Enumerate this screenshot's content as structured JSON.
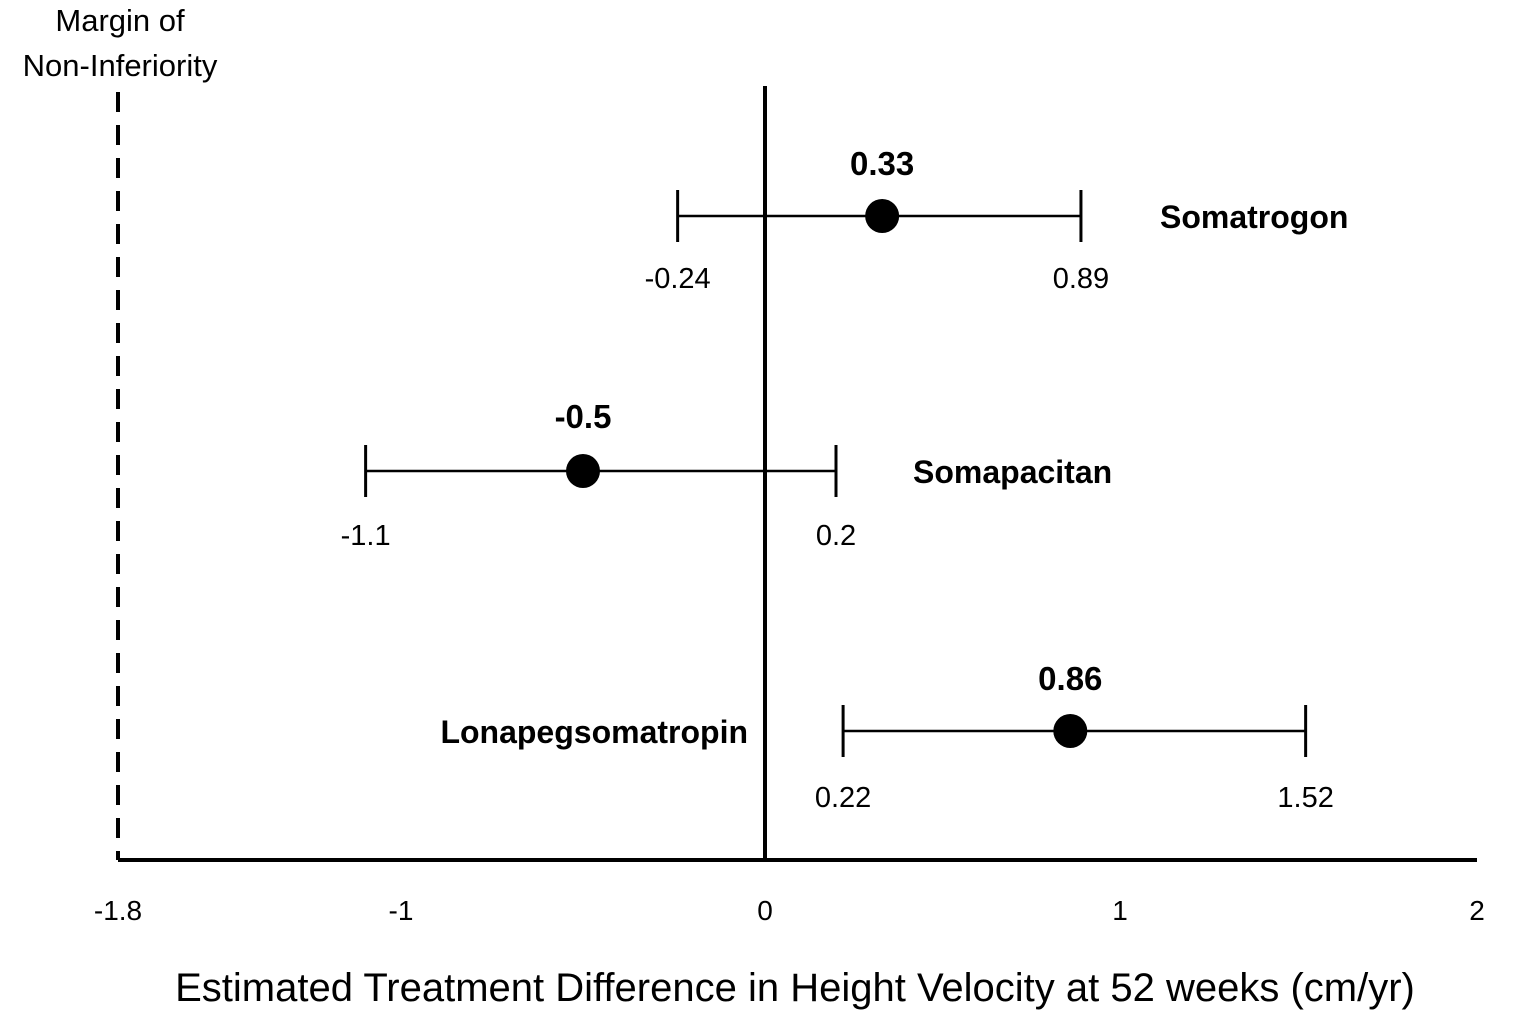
{
  "chart_data": {
    "type": "forest",
    "title": "",
    "xlabel": "Estimated Treatment Difference in Height Velocity at 52 weeks (cm/yr)",
    "ylabel": "",
    "xlim": [
      -1.8,
      2
    ],
    "x_ticks": [
      -1.8,
      -1,
      0,
      1,
      2
    ],
    "x_tick_labels": [
      "-1.8",
      "-1",
      "0",
      "1",
      "2"
    ],
    "reference_line": 0,
    "non_inferiority_margin": {
      "value": -1.8,
      "label_line1": "Margin of",
      "label_line2": "Non-Inferiority"
    },
    "grid": false,
    "series": [
      {
        "name": "Somatrogon",
        "estimate": 0.33,
        "estimate_label": "0.33",
        "ci_low": -0.24,
        "ci_low_label": "-0.24",
        "ci_high": 0.89,
        "ci_high_label": "0.89"
      },
      {
        "name": "Somapacitan",
        "estimate": -0.5,
        "estimate_label": "-0.5",
        "ci_low": -1.1,
        "ci_low_label": "-1.1",
        "ci_high": 0.2,
        "ci_high_label": "0.2"
      },
      {
        "name": "Lonapegsomatropin",
        "estimate": 0.86,
        "estimate_label": "0.86",
        "ci_low": 0.22,
        "ci_low_label": "0.22",
        "ci_high": 1.52,
        "ci_high_label": "1.52"
      }
    ]
  }
}
